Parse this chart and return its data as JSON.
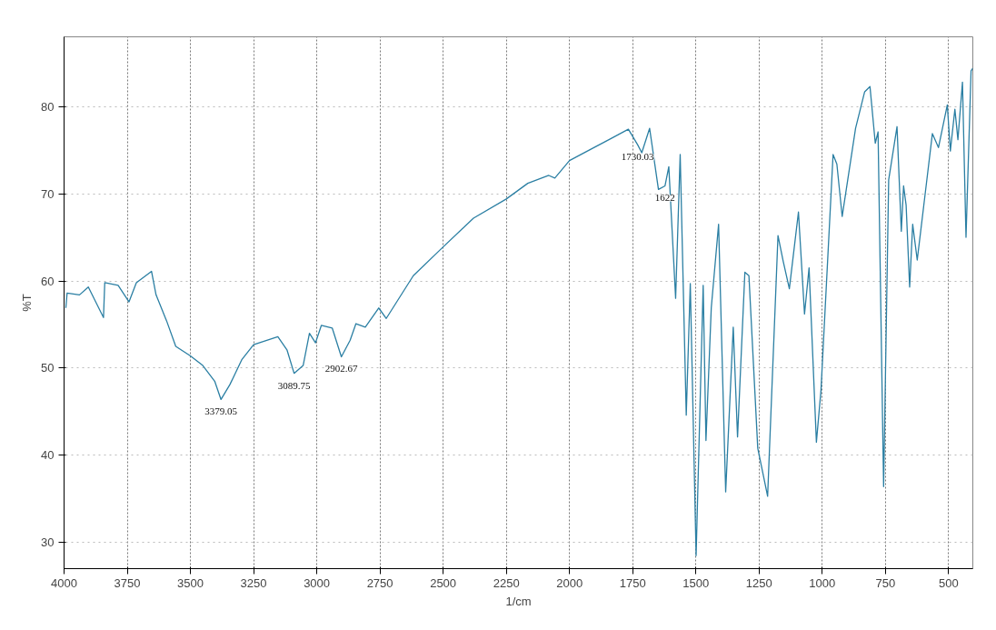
{
  "chart_data": {
    "type": "line",
    "xlabel": "1/cm",
    "ylabel": "%T",
    "x": [
      3993,
      3988,
      3939,
      3904,
      3844,
      3839,
      3786,
      3743,
      3714,
      3654,
      3636,
      3594,
      3558,
      3500,
      3451,
      3404,
      3379,
      3344,
      3296,
      3250,
      3154,
      3118,
      3089.75,
      3054,
      3029,
      3005,
      2982,
      2939,
      2902.67,
      2868,
      2845,
      2808,
      2755,
      2725,
      2618,
      2500,
      2380,
      2250,
      2165,
      2082,
      2058,
      2000,
      1929,
      1844,
      1767,
      1730.03,
      1714,
      1683,
      1648,
      1622,
      1607,
      1580,
      1562,
      1538,
      1522,
      1499,
      1471,
      1460,
      1439,
      1410,
      1382,
      1352,
      1335,
      1306,
      1290,
      1255,
      1216,
      1175,
      1154,
      1130,
      1094,
      1070,
      1052,
      1023,
      1005,
      957,
      942,
      921,
      868,
      832,
      811,
      790,
      779,
      757,
      737,
      704,
      687,
      678,
      668,
      654,
      642,
      624,
      564,
      540,
      505,
      493,
      475,
      463,
      445,
      431,
      411,
      404
    ],
    "series": [
      {
        "color": "#2b7fa3",
        "values": [
          56.9,
          58.6,
          58.4,
          59.3,
          55.8,
          59.8,
          59.5,
          57.6,
          59.8,
          61.1,
          58.4,
          55.4,
          52.5,
          51.4,
          50.3,
          48.5,
          46.4,
          48.1,
          51.0,
          52.7,
          53.6,
          52.1,
          49.4,
          50.3,
          54.0,
          52.9,
          54.9,
          54.6,
          51.3,
          53.2,
          55.1,
          54.7,
          56.9,
          55.7,
          60.6,
          63.9,
          67.2,
          69.4,
          71.2,
          72.1,
          71.8,
          73.8,
          74.9,
          76.2,
          77.4,
          75.6,
          74.7,
          77.5,
          70.5,
          70.9,
          73.1,
          58.0,
          74.5,
          44.6,
          59.7,
          28.5,
          59.5,
          41.7,
          56.9,
          66.5,
          35.8,
          54.7,
          42.1,
          61.0,
          60.6,
          40.8,
          35.3,
          65.2,
          62.2,
          59.1,
          67.9,
          56.2,
          61.5,
          41.5,
          47.4,
          74.5,
          73.4,
          67.4,
          77.5,
          81.7,
          82.3,
          75.8,
          77.1,
          36.4,
          71.6,
          77.7,
          65.7,
          70.9,
          68.7,
          59.3,
          66.5,
          62.4,
          76.9,
          75.3,
          80.2,
          74.9,
          79.7,
          76.2,
          82.8,
          65.0,
          84.1,
          84.4
        ]
      }
    ],
    "annotations": [
      {
        "text": "3379.05",
        "x": 3379,
        "y": 46.4
      },
      {
        "text": "3089.75",
        "x": 3089.75,
        "y": 49.4
      },
      {
        "text": "2902.67",
        "x": 2902.67,
        "y": 51.3
      },
      {
        "text": "1622",
        "x": 1622,
        "y": 70.9
      },
      {
        "text": "1730.03",
        "x": 1730.03,
        "y": 75.6
      }
    ],
    "xlim": [
      4000,
      404
    ],
    "xticks": [
      4000,
      3750,
      3500,
      3250,
      3000,
      2750,
      2500,
      2250,
      2000,
      1750,
      1500,
      1250,
      1000,
      750,
      500
    ],
    "ylim": [
      27,
      88
    ],
    "yticks": [
      30,
      40,
      50,
      60,
      70,
      80
    ],
    "grid": true,
    "marker": "none",
    "line_style": "solid"
  }
}
